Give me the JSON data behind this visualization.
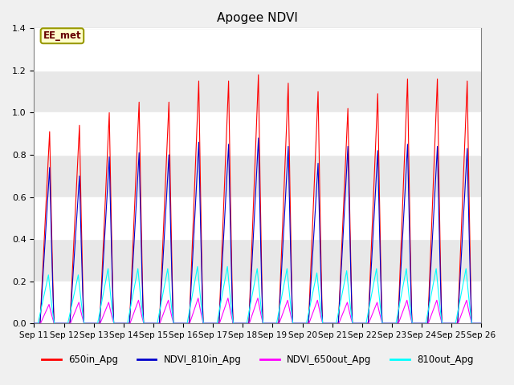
{
  "title": "Apogee NDVI",
  "ylim": [
    0,
    1.4
  ],
  "yticks": [
    0.0,
    0.2,
    0.4,
    0.6,
    0.8,
    1.0,
    1.2,
    1.4
  ],
  "background_color": "#f0f0f0",
  "plot_bg_color": "#e8e8e8",
  "grid_color": "#ffffff",
  "series_colors": {
    "650in_Apg": "#ff0000",
    "NDVI_810in_Apg": "#0000cc",
    "NDVI_650out_Apg": "#ff00ff",
    "810out_Apg": "#00ffff"
  },
  "legend_labels": [
    "650in_Apg",
    "NDVI_810in_Apg",
    "NDVI_650out_Apg",
    "810out_Apg"
  ],
  "annotation_text": "EE_met",
  "n_days": 15,
  "start_day": 11,
  "samples_per_day": 200,
  "peak_heights_650in": [
    0.91,
    0.94,
    1.0,
    1.05,
    1.05,
    1.15,
    1.15,
    1.18,
    1.14,
    1.1,
    1.02,
    1.09,
    1.16,
    1.16,
    1.15
  ],
  "peak_heights_810in": [
    0.74,
    0.7,
    0.79,
    0.81,
    0.8,
    0.86,
    0.85,
    0.88,
    0.84,
    0.76,
    0.84,
    0.82,
    0.85,
    0.84,
    0.83
  ],
  "peak_heights_650out": [
    0.09,
    0.1,
    0.1,
    0.11,
    0.11,
    0.12,
    0.12,
    0.12,
    0.11,
    0.11,
    0.1,
    0.1,
    0.11,
    0.11,
    0.11
  ],
  "peak_heights_810out": [
    0.23,
    0.23,
    0.26,
    0.26,
    0.26,
    0.27,
    0.27,
    0.26,
    0.26,
    0.24,
    0.25,
    0.26,
    0.26,
    0.26,
    0.26
  ]
}
